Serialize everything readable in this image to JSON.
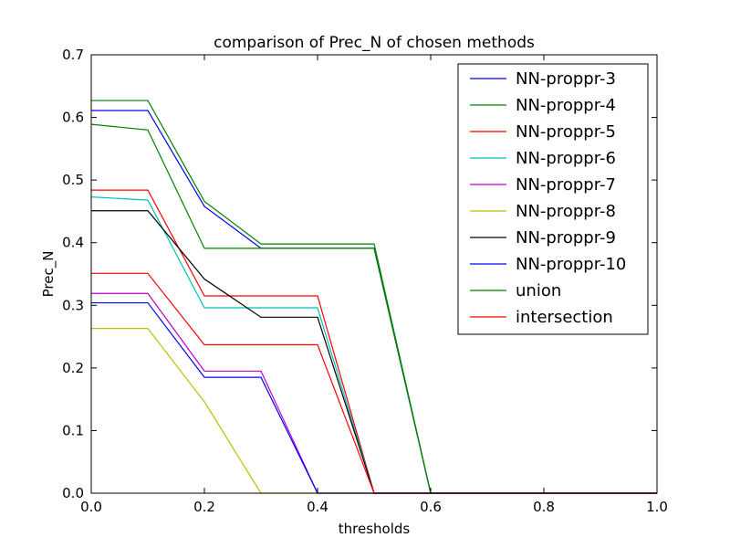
{
  "chart_data": {
    "type": "line",
    "title": "comparison of Prec_N of chosen methods",
    "xlabel": "thresholds",
    "ylabel": "Prec_N",
    "xlim": [
      0.0,
      1.0
    ],
    "ylim": [
      0.0,
      0.7
    ],
    "xticks": [
      "0.0",
      "0.2",
      "0.4",
      "0.6",
      "0.8",
      "1.0"
    ],
    "yticks": [
      "0.0",
      "0.1",
      "0.2",
      "0.3",
      "0.4",
      "0.5",
      "0.6",
      "0.7"
    ],
    "grid": false,
    "legend_position": "top-right",
    "x": [
      0.0,
      0.1,
      0.2,
      0.3,
      0.4,
      0.5,
      0.6,
      0.7,
      0.8,
      0.9,
      1.0
    ],
    "series": [
      {
        "name": "NN-proppr-3",
        "color": "#0000ff",
        "values": [
          0.611,
          0.611,
          0.458,
          0.391,
          0.391,
          0.391,
          0,
          0,
          0,
          0,
          0
        ]
      },
      {
        "name": "NN-proppr-4",
        "color": "#008000",
        "values": [
          0.627,
          0.627,
          0.466,
          0.398,
          0.398,
          0.398,
          0,
          0,
          0,
          0,
          0
        ]
      },
      {
        "name": "NN-proppr-5",
        "color": "#ff0000",
        "values": [
          0.484,
          0.484,
          0.315,
          0.315,
          0.315,
          0,
          0,
          0,
          0,
          0,
          0
        ]
      },
      {
        "name": "NN-proppr-6",
        "color": "#00bfbf",
        "values": [
          0.473,
          0.468,
          0.296,
          0.296,
          0.296,
          0,
          0,
          0,
          0,
          0,
          0
        ]
      },
      {
        "name": "NN-proppr-7",
        "color": "#bf00bf",
        "values": [
          0.319,
          0.319,
          0.195,
          0.195,
          0,
          0,
          0,
          0,
          0,
          0,
          0
        ]
      },
      {
        "name": "NN-proppr-8",
        "color": "#bfbf00",
        "values": [
          0.263,
          0.263,
          0.146,
          0,
          0,
          0,
          0,
          0,
          0,
          0,
          0
        ]
      },
      {
        "name": "NN-proppr-9",
        "color": "#000000",
        "values": [
          0.451,
          0.451,
          0.342,
          0.281,
          0.281,
          0,
          0,
          0,
          0,
          0,
          0
        ]
      },
      {
        "name": "NN-proppr-10",
        "color": "#0000ff",
        "values": [
          0.304,
          0.304,
          0.185,
          0.185,
          0,
          0,
          0,
          0,
          0,
          0,
          0
        ]
      },
      {
        "name": "union",
        "color": "#008000",
        "values": [
          0.589,
          0.58,
          0.391,
          0.391,
          0.391,
          0.391,
          0,
          0,
          0,
          0,
          0
        ]
      },
      {
        "name": "intersection",
        "color": "#ff0000",
        "values": [
          0.351,
          0.351,
          0.237,
          0.237,
          0.237,
          0,
          0,
          0,
          0,
          0,
          0
        ]
      }
    ]
  }
}
